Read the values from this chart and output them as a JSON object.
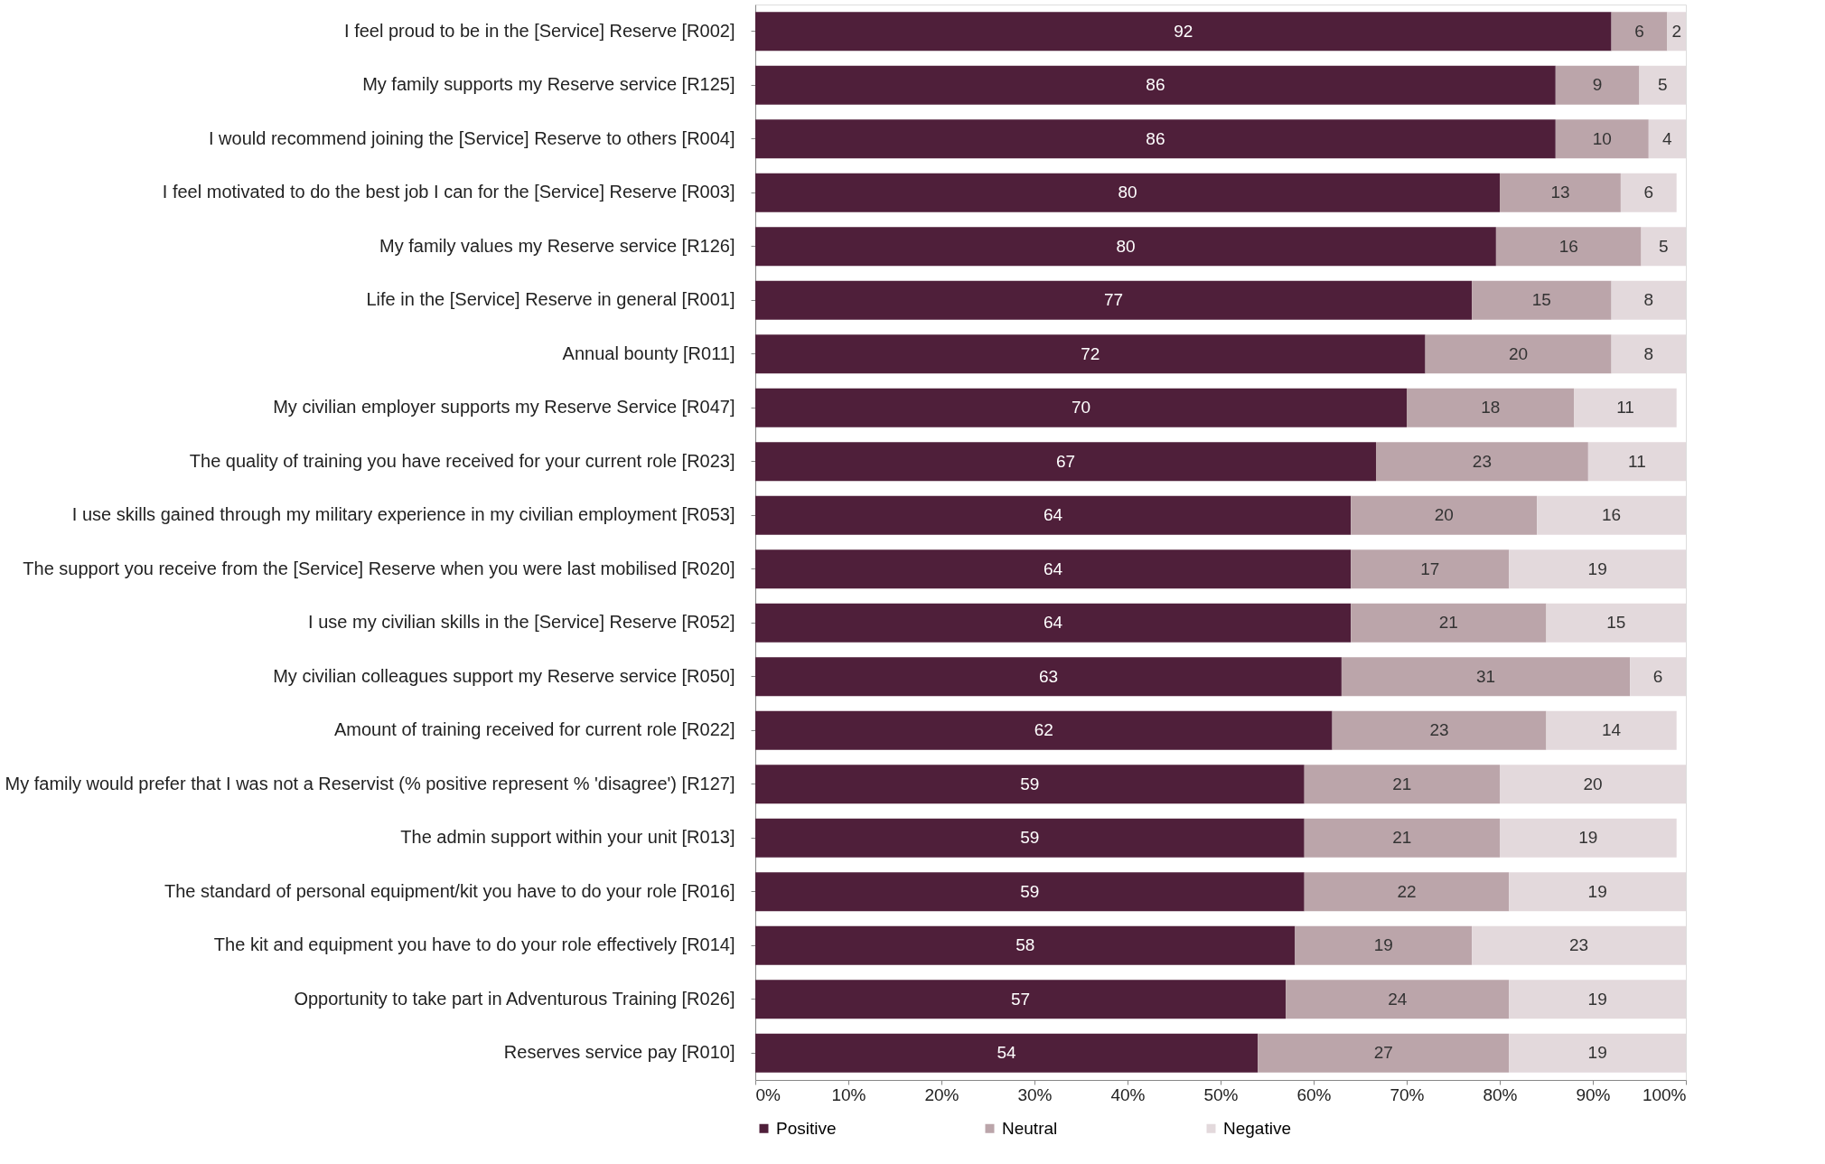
{
  "chart_data": {
    "type": "bar",
    "orientation": "horizontal",
    "stacked": true,
    "categories": [
      "I feel proud to be in the [Service] Reserve [R002]",
      "My family supports my Reserve service [R125]",
      "I would recommend joining the [Service] Reserve to others [R004]",
      "I feel motivated to do the best job I can for the [Service] Reserve [R003]",
      "My family values my Reserve service [R126]",
      "Life in the [Service] Reserve in general [R001]",
      "Annual bounty [R011]",
      "My civilian employer supports my Reserve Service [R047]",
      "The quality of training you have received for your current role [R023]",
      "I use skills gained through my military experience in my civilian employment [R053]",
      "The support you receive from the [Service] Reserve when you were last mobilised [R020]",
      "I use my civilian skills in the [Service] Reserve [R052]",
      "My civilian colleagues support my Reserve service [R050]",
      "Amount of training received for current role [R022]",
      "My family would prefer that I was not a Reservist (% positive represent % 'disagree') [R127]",
      "The admin support within your unit [R013]",
      "The standard of personal equipment/kit you have to do your role [R016]",
      "The kit and equipment you have to do your role effectively [R014]",
      "Opportunity to take part in Adventurous Training [R026]",
      "Reserves service pay [R010]"
    ],
    "series": [
      {
        "name": "Positive",
        "color": "#4f1f3a",
        "values": [
          92,
          86,
          86,
          80,
          79.6,
          77,
          72,
          70,
          66.7,
          64,
          64,
          64,
          63,
          62,
          59,
          59,
          59,
          58,
          57,
          54
        ],
        "value_labels": [
          "92",
          "86",
          "86",
          "80",
          "80",
          "77",
          "72",
          "70",
          "67",
          "64",
          "64",
          "64",
          "63",
          "62",
          "59",
          "59",
          "59",
          "58",
          "57",
          "54"
        ]
      },
      {
        "name": "Neutral",
        "color": "#bba5aa",
        "values": [
          6,
          9,
          10,
          13,
          15.6,
          15,
          20,
          18,
          22.8,
          20,
          17,
          21,
          31,
          23,
          21,
          21,
          22,
          19,
          24,
          27
        ],
        "value_labels": [
          "6",
          "9",
          "10",
          "13",
          "16",
          "15",
          "20",
          "18",
          "23",
          "20",
          "17",
          "21",
          "31",
          "23",
          "21",
          "21",
          "22",
          "19",
          "24",
          "27"
        ]
      },
      {
        "name": "Negative",
        "color": "#e3d9dc",
        "values": [
          2,
          5,
          4,
          6,
          4.8,
          8,
          8,
          11,
          10.5,
          16,
          19,
          15,
          6,
          14,
          20,
          19,
          19,
          23,
          19,
          19
        ],
        "value_labels": [
          "2",
          "5",
          "4",
          "6",
          "5",
          "8",
          "8",
          "11",
          "11",
          "16",
          "19",
          "15",
          "6",
          "14",
          "20",
          "19",
          "19",
          "23",
          "19",
          "19"
        ]
      }
    ],
    "xlim": [
      0,
      100
    ],
    "xticks": [
      {
        "value": 0,
        "label": "0%"
      },
      {
        "value": 10,
        "label": "10%"
      },
      {
        "value": 20,
        "label": "20%"
      },
      {
        "value": 30,
        "label": "30%"
      },
      {
        "value": 40,
        "label": "40%"
      },
      {
        "value": 50,
        "label": "50%"
      },
      {
        "value": 60,
        "label": "60%"
      },
      {
        "value": 70,
        "label": "70%"
      },
      {
        "value": 80,
        "label": "80%"
      },
      {
        "value": 90,
        "label": "90%"
      },
      {
        "value": 100,
        "label": "100%"
      }
    ],
    "legend": "bottom",
    "grid": false
  }
}
